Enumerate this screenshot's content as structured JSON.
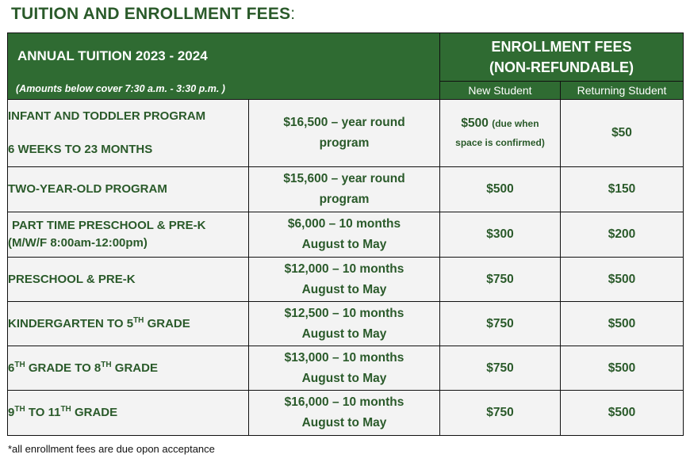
{
  "title": {
    "text": "TUITION AND ENROLLMENT FEES",
    "colon": ":"
  },
  "header": {
    "annual_bold": "ANNUAL TUITION",
    "annual_years": "2023 - 2024",
    "hours_note": "(Amounts below cover 7:30 a.m. - 3:30 p.m. )",
    "enroll_line1": "ENROLLMENT FEES",
    "enroll_line2": "(NON-REFUNDABLE)",
    "new_student": "New Student",
    "returning_student": "Returning Student"
  },
  "rows": [
    {
      "prog1": "INFANT AND TODDLER PROGRAM",
      "prog2": "6 WEEKS TO 23 MONTHS",
      "price1": "$16,500 – year round",
      "price2": "program",
      "new_fee": "$500",
      "new_fee_note1": "(due when",
      "new_fee_note2": "space is confirmed)",
      "return_fee": "$50"
    },
    {
      "prog1": "TWO-YEAR-OLD PROGRAM",
      "price1": "$15,600  – year round",
      "price2": "program",
      "new_fee": "$500",
      "return_fee": "$150"
    },
    {
      "prog1": "PART TIME PRESCHOOL & PRE-K",
      "prog2": "(M/W/F 8:00am-12:00pm)",
      "price1": "$6,000 – 10 months",
      "price2": "August to May",
      "new_fee": "$300",
      "return_fee": "$200"
    },
    {
      "prog1": "PRESCHOOL & PRE-K",
      "price1": "$12,000  – 10 months",
      "price2": "August to May",
      "new_fee": "$750",
      "return_fee": "$500"
    },
    {
      "prog_a": "KINDERGARTEN TO 5",
      "prog_sup": "TH",
      "prog_b": " GRADE",
      "price1": "$12,500 – 10 months",
      "price2": "August to May",
      "new_fee": "$750",
      "return_fee": "$500"
    },
    {
      "prog_a": "6",
      "prog_sup": "TH",
      "prog_b": " GRADE TO 8",
      "prog_sup2": "TH",
      "prog_c": " GRADE",
      "price1": "$13,000 – 10 months",
      "price2": "August to May",
      "new_fee": "$750",
      "return_fee": "$500"
    },
    {
      "prog_a": "9",
      "prog_sup": "TH",
      "prog_b": " TO 11",
      "prog_sup2": "TH",
      "prog_c": " GRADE",
      "price1": "$16,000 – 10 months",
      "price2": "August to May",
      "new_fee": "$750",
      "return_fee": "$500"
    }
  ],
  "footnote": "*all enrollment fees are due opon acceptance",
  "colors": {
    "header_green": "#2f6b32",
    "text_green": "#2a5a2a",
    "cell_bg": "#f3f3f3"
  }
}
